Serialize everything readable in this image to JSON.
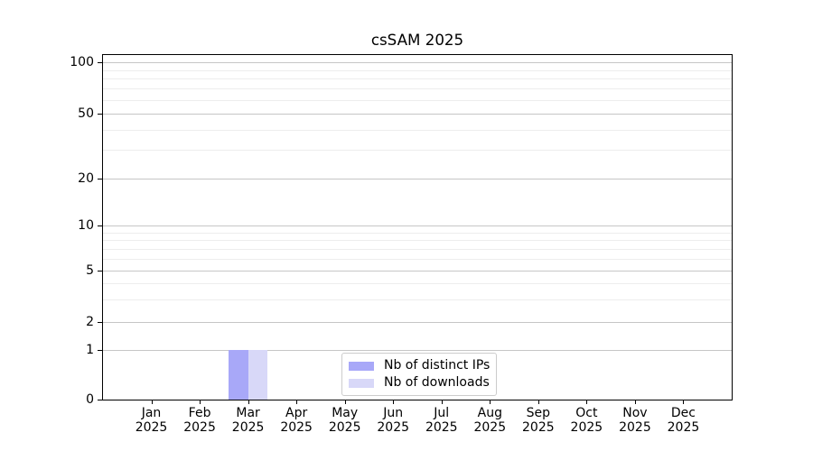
{
  "chart_data": {
    "type": "bar",
    "title": "csSAM 2025",
    "categories": [
      {
        "month": "Jan",
        "year": "2025"
      },
      {
        "month": "Feb",
        "year": "2025"
      },
      {
        "month": "Mar",
        "year": "2025"
      },
      {
        "month": "Apr",
        "year": "2025"
      },
      {
        "month": "May",
        "year": "2025"
      },
      {
        "month": "Jun",
        "year": "2025"
      },
      {
        "month": "Jul",
        "year": "2025"
      },
      {
        "month": "Aug",
        "year": "2025"
      },
      {
        "month": "Sep",
        "year": "2025"
      },
      {
        "month": "Oct",
        "year": "2025"
      },
      {
        "month": "Nov",
        "year": "2025"
      },
      {
        "month": "Dec",
        "year": "2025"
      }
    ],
    "series": [
      {
        "name": "Nb of distinct IPs",
        "color": "#a8a8f8",
        "values": [
          0,
          0,
          1,
          0,
          0,
          0,
          0,
          0,
          0,
          0,
          0,
          0
        ]
      },
      {
        "name": "Nb of downloads",
        "color": "#d8d8f8",
        "values": [
          0,
          0,
          1,
          0,
          0,
          0,
          0,
          0,
          0,
          0,
          0,
          0
        ]
      }
    ],
    "y_axis": {
      "scale": "log-above-1-linear-to-0",
      "ticks": [
        0,
        1,
        2,
        5,
        10,
        20,
        50,
        100
      ],
      "minor_gridlines": [
        3,
        4,
        6,
        7,
        8,
        9,
        30,
        40,
        60,
        70,
        80,
        90
      ],
      "range": [
        0,
        115
      ]
    },
    "legend": {
      "position": "inside-bottom-center"
    },
    "grid": "horizontal",
    "colors": {
      "major_grid": "#c6c6c6",
      "minor_grid": "#ededed",
      "axis": "#000000",
      "background": "#ffffff"
    }
  }
}
